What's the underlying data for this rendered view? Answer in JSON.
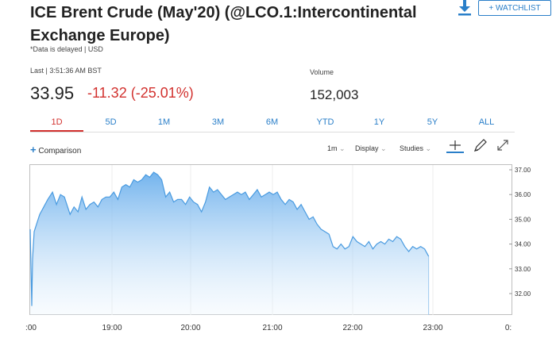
{
  "header": {
    "title": "ICE Brent Crude (May'20) (@LCO.1:Intercontinental Exchange Europe)",
    "watchlist_label": "+ WATCHLIST",
    "delayed_note": "*Data is delayed | USD"
  },
  "quote": {
    "last_label": "Last | 3:51:36 AM BST",
    "price": "33.95",
    "change": "-11.32 (-25.01%)",
    "volume_label": "Volume",
    "volume": "152,003"
  },
  "colors": {
    "accent": "#2a7fc9",
    "negative": "#d2312e",
    "line": "#4a9be0"
  },
  "tabs": [
    {
      "label": "1D",
      "active": true
    },
    {
      "label": "5D"
    },
    {
      "label": "1M"
    },
    {
      "label": "3M"
    },
    {
      "label": "6M"
    },
    {
      "label": "YTD"
    },
    {
      "label": "1Y"
    },
    {
      "label": "5Y"
    },
    {
      "label": "ALL"
    }
  ],
  "toolbar": {
    "comparison_label": "Comparison",
    "interval_label": "1m",
    "display_label": "Display",
    "studies_label": "Studies",
    "icons": [
      "crosshair-icon",
      "draw-icon",
      "expand-icon"
    ]
  },
  "chart_data": {
    "type": "area",
    "x_ticks": [
      ":00",
      "19:00",
      "20:00",
      "21:00",
      "22:00",
      "23:00",
      "0:"
    ],
    "y_ticks": [
      "37.00",
      "36.00",
      "35.00",
      "34.00",
      "33.00",
      "32.00"
    ],
    "ylim": [
      31.2,
      37.3
    ],
    "x_hours": [
      18.0,
      18.02,
      18.03,
      18.05,
      18.08,
      18.12,
      18.17,
      18.22,
      18.28,
      18.33,
      18.38,
      18.43,
      18.5,
      18.55,
      18.6,
      18.65,
      18.7,
      18.75,
      18.8,
      18.85,
      18.9,
      18.95,
      19.0,
      19.05,
      19.1,
      19.15,
      19.2,
      19.25,
      19.3,
      19.35,
      19.4,
      19.45,
      19.5,
      19.55,
      19.6,
      19.65,
      19.7,
      19.75,
      19.8,
      19.85,
      19.9,
      19.95,
      20.0,
      20.05,
      20.1,
      20.15,
      20.2,
      20.25,
      20.3,
      20.35,
      20.4,
      20.45,
      20.5,
      20.55,
      20.6,
      20.65,
      20.7,
      20.75,
      20.8,
      20.85,
      20.9,
      20.95,
      21.0,
      21.05,
      21.1,
      21.15,
      21.2,
      21.25,
      21.3,
      21.35,
      21.4,
      21.45,
      21.5,
      21.55,
      21.6,
      21.65,
      21.7,
      21.75,
      21.8,
      21.85,
      21.9,
      21.95,
      22.0,
      22.05,
      22.1,
      22.15,
      22.2,
      22.25,
      22.3,
      22.35,
      22.4,
      22.45,
      22.5,
      22.55,
      22.6,
      22.65,
      22.7,
      22.75,
      22.8,
      22.85,
      22.9,
      22.95,
      23.0
    ],
    "values": [
      34.6,
      31.5,
      33.4,
      34.5,
      34.8,
      35.2,
      35.5,
      35.8,
      36.1,
      35.6,
      36.0,
      35.9,
      35.2,
      35.5,
      35.3,
      35.9,
      35.4,
      35.6,
      35.7,
      35.5,
      35.8,
      35.9,
      35.9,
      36.1,
      35.8,
      36.3,
      36.4,
      36.3,
      36.6,
      36.5,
      36.6,
      36.8,
      36.7,
      36.9,
      36.8,
      36.6,
      35.9,
      36.1,
      35.7,
      35.8,
      35.8,
      35.6,
      35.9,
      35.7,
      35.6,
      35.3,
      35.7,
      36.3,
      36.1,
      36.2,
      36.0,
      35.8,
      35.9,
      36.0,
      36.1,
      36.0,
      36.1,
      35.8,
      36.0,
      36.2,
      35.9,
      36.0,
      36.1,
      36.0,
      36.1,
      35.8,
      35.6,
      35.8,
      35.7,
      35.4,
      35.6,
      35.3,
      35.0,
      35.1,
      34.8,
      34.6,
      34.5,
      34.4,
      33.9,
      33.8,
      34.0,
      33.8,
      33.9,
      34.3,
      34.1,
      34.0,
      33.9,
      34.1,
      33.8,
      34.0,
      34.1,
      34.0,
      34.2,
      34.1,
      34.3,
      34.2,
      33.9,
      33.7,
      33.9,
      33.8,
      33.9,
      33.8,
      33.5
    ]
  }
}
